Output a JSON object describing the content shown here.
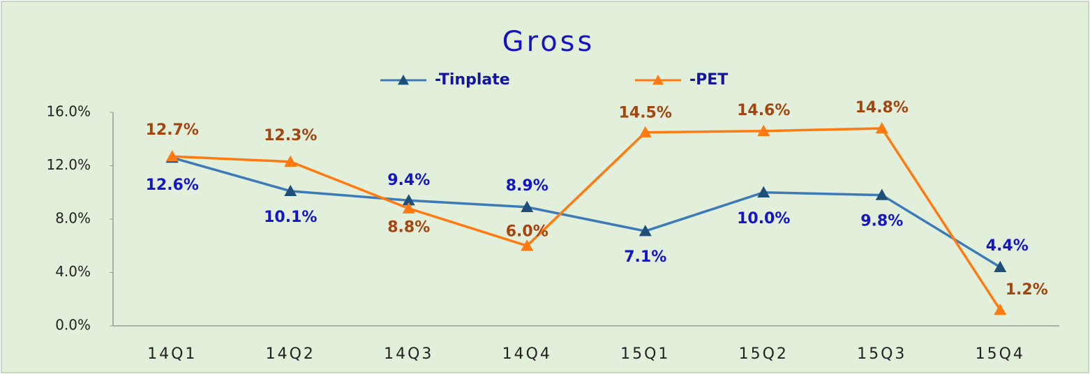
{
  "chart_data": {
    "type": "line",
    "title": "Gross",
    "categories": [
      "14Q1",
      "14Q2",
      "14Q3",
      "14Q4",
      "15Q1",
      "15Q2",
      "15Q3",
      "15Q4"
    ],
    "series": [
      {
        "name": "-Tinplate",
        "color": "#3d7ab8",
        "marker_color": "#1f4e79",
        "label_color": "#1414c8",
        "values": [
          12.6,
          10.1,
          9.4,
          8.9,
          7.1,
          10.0,
          9.8,
          4.4
        ],
        "value_labels": [
          "12.6%",
          "10.1%",
          "9.4%",
          "8.9%",
          "7.1%",
          "10.0%",
          "9.8%",
          "4.4%"
        ]
      },
      {
        "name": "-PET",
        "color": "#ff7a10",
        "marker_color": "#ff7a10",
        "label_color": "#a3450f",
        "values": [
          12.7,
          12.3,
          8.8,
          6.0,
          14.5,
          14.6,
          14.8,
          1.2
        ],
        "value_labels": [
          "12.7%",
          "12.3%",
          "8.8%",
          "6.0%",
          "14.5%",
          "14.6%",
          "14.8%",
          "1.2%"
        ]
      }
    ],
    "ylim": [
      0,
      16
    ],
    "yticks": [
      {
        "value": 0,
        "label": "0.0%"
      },
      {
        "value": 4,
        "label": "4.0%"
      },
      {
        "value": 8,
        "label": "8.0%"
      },
      {
        "value": 12,
        "label": "12.0%"
      },
      {
        "value": 16,
        "label": "16.0%"
      }
    ],
    "grid": false,
    "legend": "top"
  }
}
